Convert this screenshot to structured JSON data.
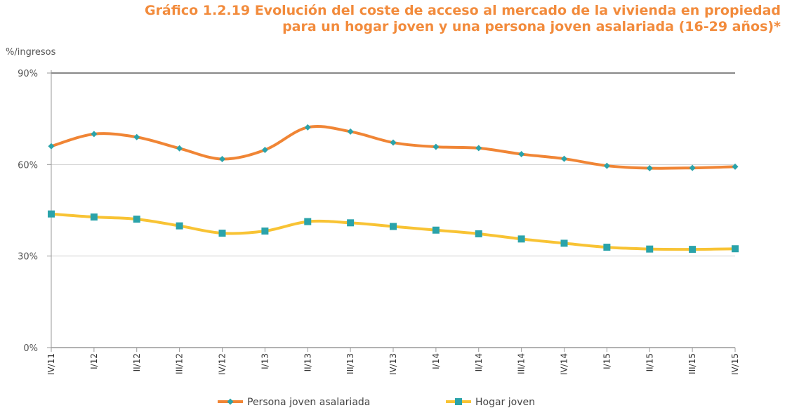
{
  "title_lines": [
    "Gráfico 1.2.19 Evolución del coste de acceso al mercado de la vivienda en propiedad",
    "para un hogar joven y una persona joven asalariada (16-29 años)*"
  ],
  "chart_data": {
    "type": "line",
    "title": "Gráfico 1.2.19 Evolución del coste de acceso al mercado de la vivienda en propiedad para un hogar joven y una persona joven asalariada (16-29 años)*",
    "ylabel": "%/ingresos",
    "xlabel": "",
    "ylim": [
      0,
      90
    ],
    "yticks": [
      0,
      30,
      60,
      90
    ],
    "ytick_labels": [
      "0%",
      "30%",
      "60%",
      "90%"
    ],
    "grid": "horizontal",
    "legend_position": "bottom",
    "categories": [
      "IV/11",
      "I/12",
      "II/12",
      "III/12",
      "IV/12",
      "I/13",
      "II/13",
      "III/13",
      "IV/13",
      "I/14",
      "II/14",
      "III/14",
      "IV/14",
      "I/15",
      "II/15",
      "III/15",
      "IV/15"
    ],
    "series": [
      {
        "name": "Persona joven asalariada",
        "color": "#f08535",
        "marker": "diamond",
        "marker_color": "#2aa3aa",
        "values": [
          66.0,
          70.0,
          69.0,
          65.3,
          61.8,
          64.8,
          72.2,
          70.8,
          67.2,
          65.8,
          65.4,
          63.4,
          61.9,
          59.6,
          58.8,
          58.9,
          59.3
        ]
      },
      {
        "name": "Hogar joven",
        "color": "#f8c334",
        "marker": "square",
        "marker_color": "#2aa3aa",
        "values": [
          43.8,
          42.8,
          42.1,
          39.9,
          37.5,
          38.2,
          41.3,
          40.9,
          39.7,
          38.5,
          37.3,
          35.6,
          34.2,
          32.9,
          32.3,
          32.2,
          32.4
        ]
      }
    ]
  }
}
